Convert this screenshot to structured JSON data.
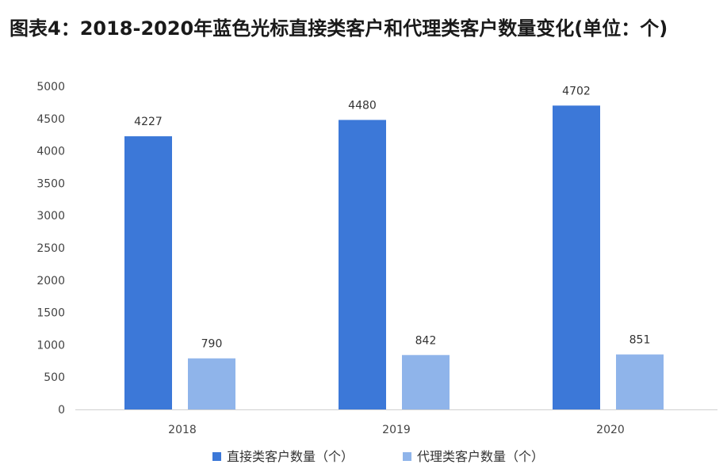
{
  "chart_data": {
    "type": "bar",
    "title": "图表4：2018-2020年蓝色光标直接类客户和代理类客户数量变化(单位：个)",
    "categories": [
      "2018",
      "2019",
      "2020"
    ],
    "series": [
      {
        "name": "直接类客户数量（个）",
        "values": [
          4227,
          4480,
          4702
        ],
        "color": "#3c78d8"
      },
      {
        "name": "代理类客户数量（个）",
        "values": [
          790,
          842,
          851
        ],
        "color": "#8fb4ea"
      }
    ],
    "xlabel": "",
    "ylabel": "",
    "ylim": [
      0,
      5000
    ],
    "yticks": [
      0,
      500,
      1000,
      1500,
      2000,
      2500,
      3000,
      3500,
      4000,
      4500,
      5000
    ],
    "grid": false,
    "legend_position": "bottom-center",
    "data_labels": true
  }
}
